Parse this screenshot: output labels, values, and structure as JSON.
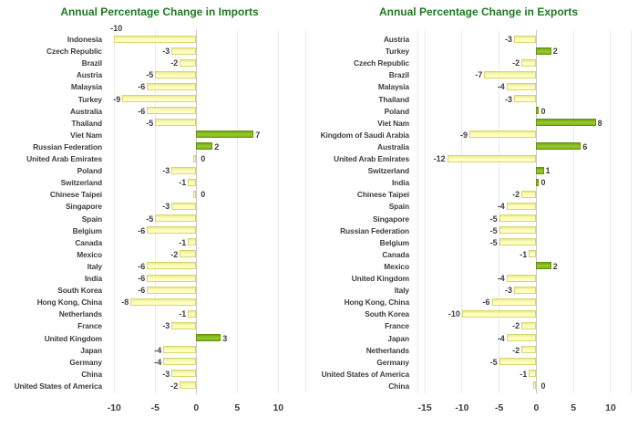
{
  "page": {
    "background": "#ffffff"
  },
  "colors": {
    "title_green": "#1f7a1f",
    "text_gray": "#3d3d3d",
    "bar_negative_fill": "#ffffc0",
    "bar_negative_border": "#d6d66e",
    "bar_positive_fill": "#8fc423",
    "bar_positive_border": "#689212",
    "gridline": "#e9e9e9",
    "zero_line": "#c6c6c6"
  },
  "chart_data": [
    {
      "id": "imports",
      "type": "bar",
      "orientation": "horizontal",
      "title": "Annual Percentage Change in Imports",
      "xlabel": "",
      "ylabel": "",
      "xlim": [
        -10.7,
        13.3
      ],
      "xticks": [
        -10,
        -5,
        0,
        5,
        10
      ],
      "grid": true,
      "legend": false,
      "categories": [
        "Indonesia",
        "Czech Republic",
        "Brazil",
        "Austria",
        "Malaysia",
        "Turkey",
        "Australia",
        "Thailand",
        "Viet Nam",
        "Russian Federation",
        "United Arab Emirates",
        "Poland",
        "Switzerland",
        "Chinese Taipei",
        "Singapore",
        "Spain",
        "Belgium",
        "Canada",
        "Mexico",
        "Italy",
        "India",
        "South Korea",
        "Hong Kong, China",
        "Netherlands",
        "France",
        "United Kingdom",
        "Japan",
        "Germany",
        "China",
        "United States of America"
      ],
      "values": [
        -10,
        -3,
        -2,
        -5,
        -6,
        -9,
        -6,
        -5,
        7,
        2,
        0,
        -3,
        -1,
        0,
        -3,
        -5,
        -6,
        -1,
        -2,
        -6,
        -6,
        -6,
        -8,
        -1,
        -3,
        3,
        -4,
        -4,
        -3,
        -2
      ],
      "bar_colors": [
        "yellow",
        "yellow",
        "yellow",
        "yellow",
        "yellow",
        "yellow",
        "yellow",
        "yellow",
        "green",
        "green",
        "yellow",
        "yellow",
        "yellow",
        "yellow",
        "yellow",
        "yellow",
        "yellow",
        "yellow",
        "yellow",
        "yellow",
        "yellow",
        "yellow",
        "yellow",
        "yellow",
        "yellow",
        "green",
        "yellow",
        "yellow",
        "yellow",
        "yellow"
      ],
      "special_labels": [
        {
          "category": "Indonesia",
          "position": "above"
        }
      ]
    },
    {
      "id": "exports",
      "type": "bar",
      "orientation": "horizontal",
      "title": "Annual Percentage Change in Exports",
      "xlabel": "",
      "ylabel": "",
      "xlim": [
        -16.0,
        12.7
      ],
      "xticks": [
        -15,
        -10,
        -5,
        0,
        5,
        10
      ],
      "grid": true,
      "legend": false,
      "categories": [
        "Austria",
        "Turkey",
        "Czech Republic",
        "Brazil",
        "Malaysia",
        "Thailand",
        "Poland",
        "Viet Nam",
        "Kingdom of Saudi Arabia",
        "Australia",
        "United Arab Emirates",
        "Switzerland",
        "India",
        "Chinese Taipei",
        "Spain",
        "Singapore",
        "Russian Federation",
        "Belgium",
        "Canada",
        "Mexico",
        "United Kingdom",
        "Italy",
        "Hong Kong, China",
        "South Korea",
        "France",
        "Japan",
        "Netherlands",
        "Germany",
        "United States of America",
        "China"
      ],
      "values": [
        -3,
        2,
        -2,
        -7,
        -4,
        -3,
        0,
        8,
        -9,
        6,
        -12,
        1,
        0,
        -2,
        -4,
        -5,
        -5,
        -5,
        -1,
        2,
        -4,
        -3,
        -6,
        -10,
        -2,
        -4,
        -2,
        -5,
        -1,
        0
      ],
      "bar_colors": [
        "yellow",
        "green",
        "yellow",
        "yellow",
        "yellow",
        "yellow",
        "green",
        "green",
        "yellow",
        "green",
        "yellow",
        "green",
        "green",
        "yellow",
        "yellow",
        "yellow",
        "yellow",
        "yellow",
        "yellow",
        "green",
        "yellow",
        "yellow",
        "yellow",
        "yellow",
        "yellow",
        "yellow",
        "yellow",
        "yellow",
        "yellow",
        "yellow"
      ],
      "special_labels": []
    }
  ]
}
